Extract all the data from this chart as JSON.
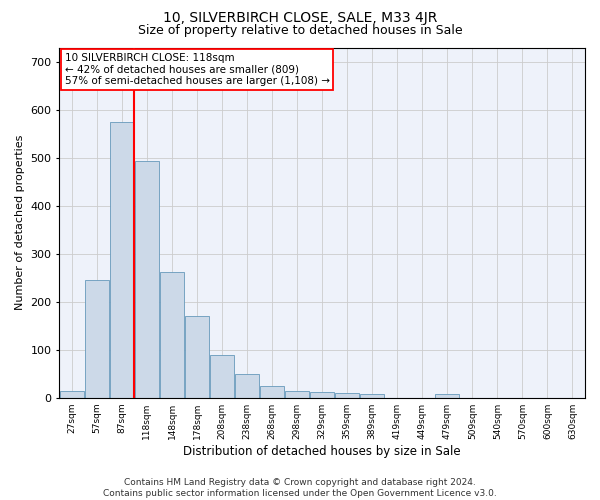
{
  "title": "10, SILVERBIRCH CLOSE, SALE, M33 4JR",
  "subtitle": "Size of property relative to detached houses in Sale",
  "xlabel": "Distribution of detached houses by size in Sale",
  "ylabel": "Number of detached properties",
  "bar_color": "#ccd9e8",
  "bar_edge_color": "#6699bb",
  "grid_color": "#cccccc",
  "background_color": "#eef2fa",
  "annotation_line1": "10 SILVERBIRCH CLOSE: 118sqm",
  "annotation_line2": "← 42% of detached houses are smaller (809)",
  "annotation_line3": "57% of semi-detached houses are larger (1,108) →",
  "vline_color": "red",
  "annotation_box_color": "red",
  "bins": [
    "27sqm",
    "57sqm",
    "87sqm",
    "118sqm",
    "148sqm",
    "178sqm",
    "208sqm",
    "238sqm",
    "268sqm",
    "298sqm",
    "329sqm",
    "359sqm",
    "389sqm",
    "419sqm",
    "449sqm",
    "479sqm",
    "509sqm",
    "540sqm",
    "570sqm",
    "600sqm",
    "630sqm"
  ],
  "values": [
    13,
    246,
    575,
    493,
    261,
    171,
    89,
    49,
    25,
    13,
    12,
    10,
    7,
    0,
    0,
    8,
    0,
    0,
    0,
    0,
    0
  ],
  "ylim": [
    0,
    730
  ],
  "yticks": [
    0,
    100,
    200,
    300,
    400,
    500,
    600,
    700
  ],
  "footer": "Contains HM Land Registry data © Crown copyright and database right 2024.\nContains public sector information licensed under the Open Government Licence v3.0.",
  "title_fontsize": 10,
  "subtitle_fontsize": 9,
  "footer_fontsize": 6.5,
  "ylabel_fontsize": 8,
  "xlabel_fontsize": 8.5,
  "ytick_fontsize": 8,
  "xtick_fontsize": 6.5,
  "annotation_fontsize": 7.5
}
